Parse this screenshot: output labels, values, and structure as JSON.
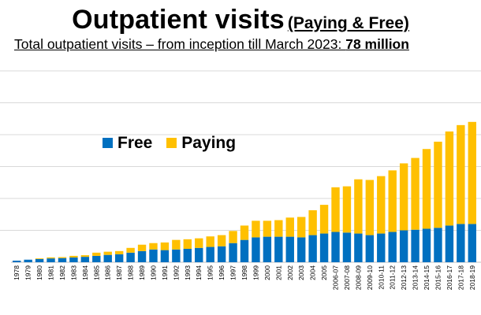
{
  "header": {
    "title": "Outpatient visits",
    "title_note": "(Paying & Free)",
    "subtitle_prefix": "Total outpatient visits – from inception till March 2023: ",
    "subtitle_value": "78 million"
  },
  "legend": {
    "free_label": "Free",
    "paying_label": "Paying"
  },
  "colors": {
    "free": "#0070C0",
    "paying": "#FFC000",
    "grid": "#D9D9D9"
  },
  "chart_data": {
    "type": "bar",
    "stacked": true,
    "title": "Outpatient visits (Paying & Free)",
    "categories": [
      "1978",
      "1979",
      "1980",
      "1981",
      "1982",
      "1983",
      "1984",
      "1985",
      "1986",
      "1987",
      "1988",
      "1989",
      "1990",
      "1991",
      "1992",
      "1993",
      "1994",
      "1995",
      "1996",
      "1997",
      "1998",
      "1999",
      "2000",
      "2001",
      "2002",
      "2003",
      "2004",
      "2005",
      "2006-07",
      "2007-08",
      "2008-09",
      "2009-10",
      "2010-11",
      "2011-12",
      "2012-13",
      "2013-14",
      "2014-15",
      "2015-16",
      "2016-17",
      "2017-18",
      "2018-19"
    ],
    "series": [
      {
        "name": "Free",
        "values": [
          0.5,
          0.8,
          1.0,
          1.2,
          1.3,
          1.5,
          1.7,
          2.0,
          2.3,
          2.5,
          3.0,
          3.5,
          4.0,
          3.8,
          4.0,
          4.2,
          4.5,
          4.8,
          5.0,
          6.0,
          7.0,
          7.8,
          8.0,
          8.0,
          8.0,
          7.8,
          8.5,
          9.0,
          9.5,
          9.3,
          9.0,
          8.5,
          9.0,
          9.5,
          10.0,
          10.2,
          10.5,
          10.8,
          11.5,
          12.0,
          12.0
        ]
      },
      {
        "name": "Paying",
        "values": [
          0,
          0,
          0.2,
          0.3,
          0.3,
          0.5,
          0.5,
          1.0,
          1.0,
          1.0,
          1.5,
          2.0,
          2.0,
          2.4,
          3.0,
          3.0,
          3.0,
          3.3,
          3.5,
          3.8,
          4.5,
          5.2,
          5.0,
          5.2,
          6.0,
          6.4,
          7.8,
          9.0,
          14.0,
          14.5,
          17.0,
          17.3,
          18.0,
          19.3,
          21.0,
          22.5,
          25.0,
          27.0,
          29.5,
          31.0,
          32.0
        ]
      }
    ],
    "ylim": [
      0,
      60
    ],
    "grid": true,
    "legend_position": "top-left"
  }
}
